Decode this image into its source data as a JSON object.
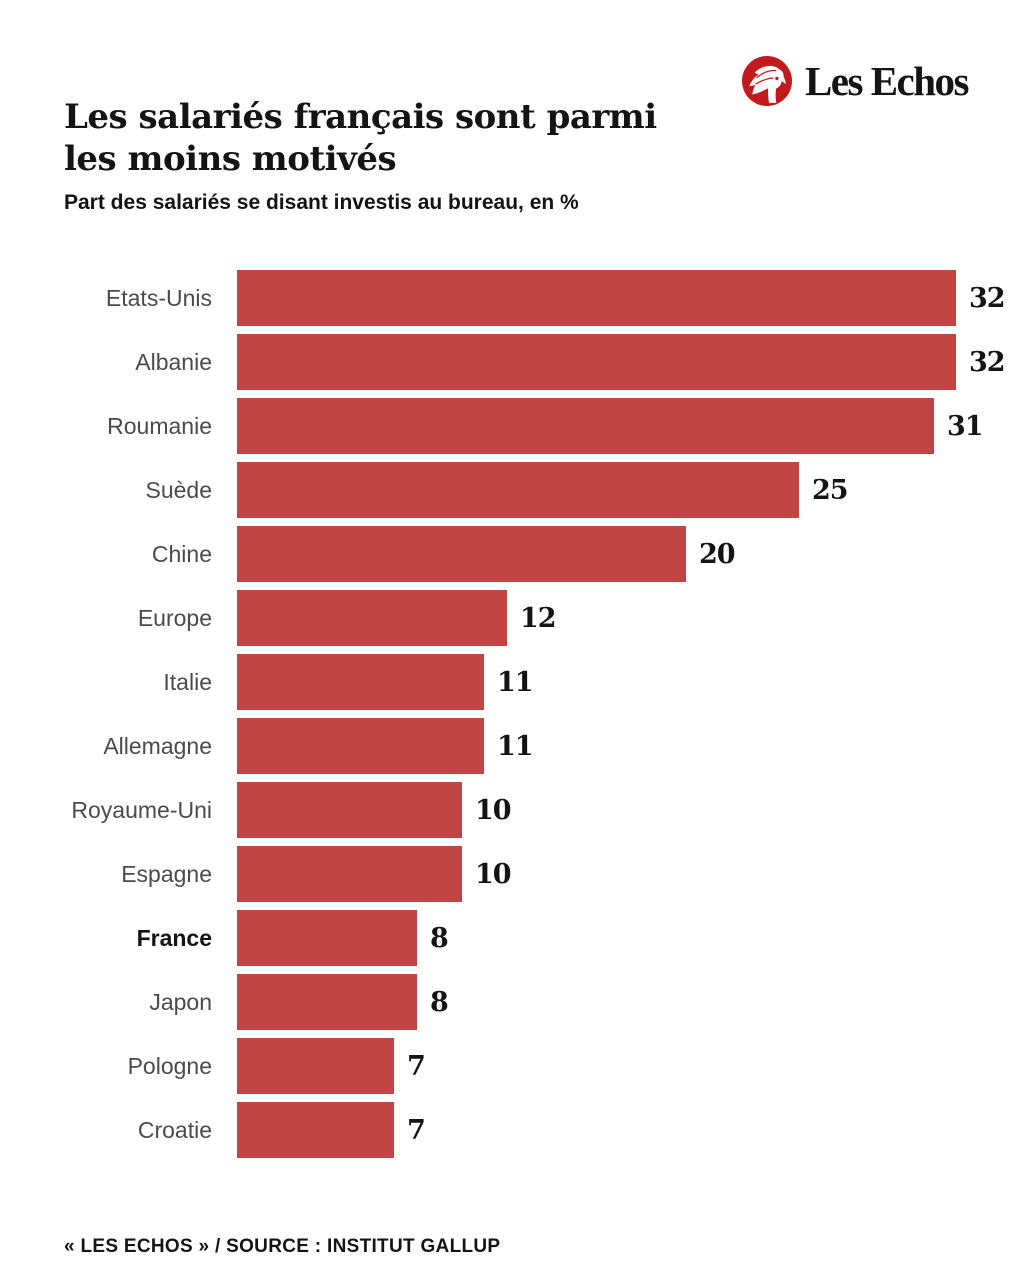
{
  "brand": {
    "name": "Les Echos",
    "logo_icon": "mercury-winged-head-icon"
  },
  "header": {
    "title_line1": "Les salariés français sont parmi",
    "title_line2": "les moins motivés",
    "subtitle": "Part des salariés se disant investis au bureau, en %"
  },
  "chart_data": {
    "type": "bar",
    "orientation": "horizontal",
    "title": "Les salariés français sont parmi les moins motivés",
    "subtitle": "Part des salariés se disant investis au bureau, en %",
    "unit": "%",
    "categories": [
      "Etats-Unis",
      "Albanie",
      "Roumanie",
      "Suède",
      "Chine",
      "Europe",
      "Italie",
      "Allemagne",
      "Royaume-Uni",
      "Espagne",
      "France",
      "Japon",
      "Pologne",
      "Croatie"
    ],
    "values": [
      32,
      32,
      31,
      25,
      20,
      12,
      11,
      11,
      10,
      10,
      8,
      8,
      7,
      7
    ],
    "emphasized_category": "France",
    "value_labels": "end-of-bar",
    "xlim": [
      0,
      32
    ],
    "grid": false,
    "legend": false
  },
  "footer": {
    "source": "« LES ECHOS » / SOURCE : INSTITUT GALLUP"
  },
  "colors": {
    "bar": "#C04543",
    "label": "#4B4B4D",
    "text": "#141414",
    "logo_red": "#C2191D",
    "background": "#FFFFFF"
  }
}
